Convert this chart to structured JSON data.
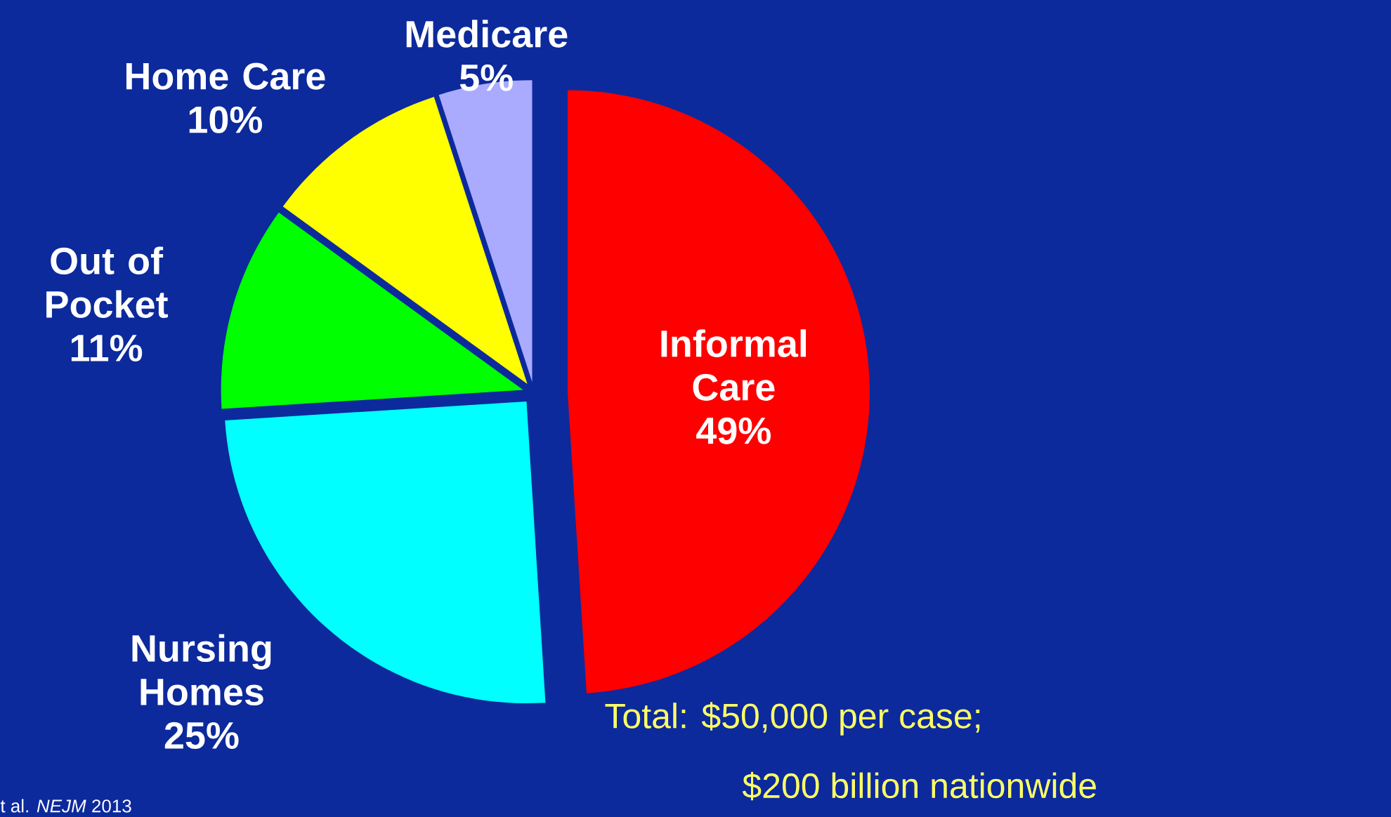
{
  "chart_data": {
    "type": "pie",
    "categories": [
      "Informal Care",
      "Nursing Homes",
      "Out of Pocket",
      "Home Care",
      "Medicare"
    ],
    "values": [
      49,
      25,
      11,
      10,
      5
    ],
    "value_labels": [
      "49%",
      "25%",
      "11%",
      "10%",
      "5%"
    ],
    "colors": [
      "#ff0000",
      "#00ffff",
      "#00ff00",
      "#ffff00",
      "#aaaaff"
    ],
    "annotations": [
      "Total: $50,000 per case;",
      "$200 billion nationwide",
      "t al. *NEJM* 2013"
    ]
  }
}
